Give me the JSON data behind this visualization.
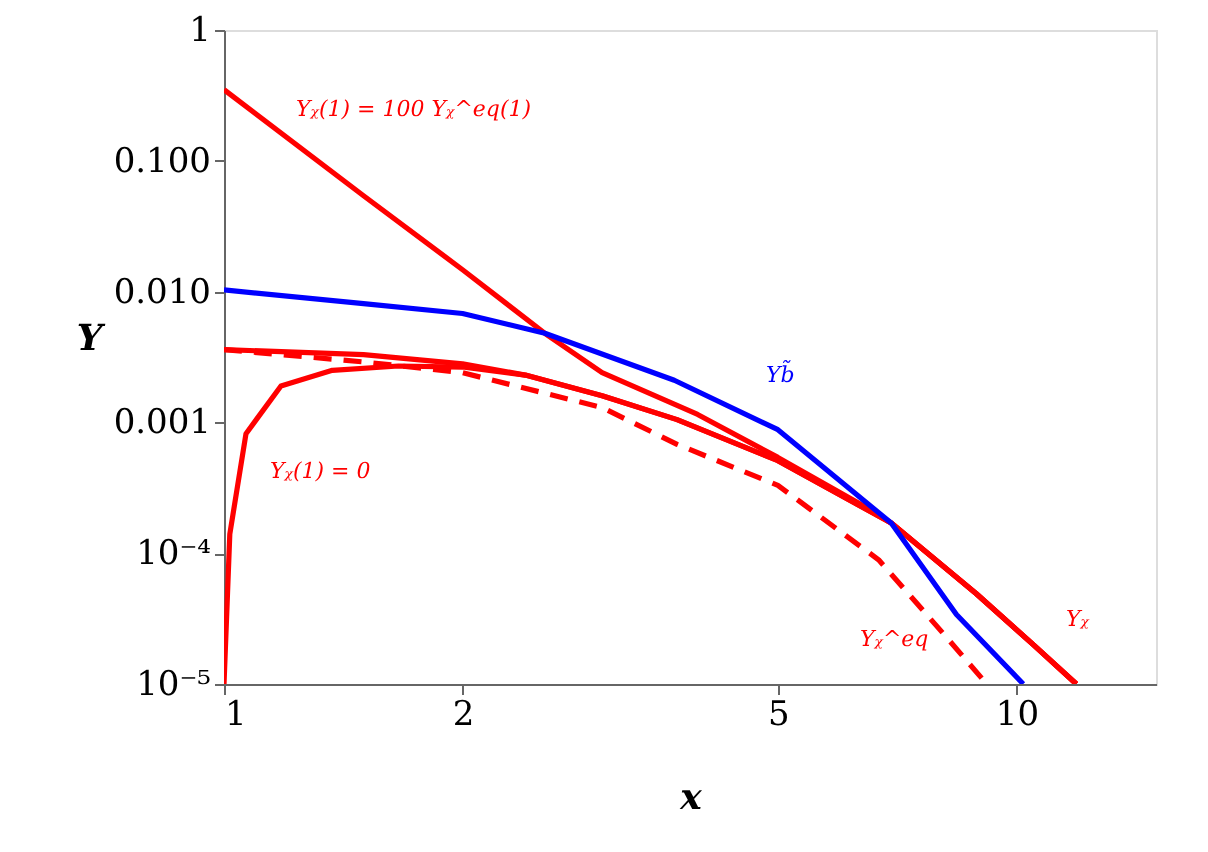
{
  "chart_data": {
    "type": "line",
    "xlabel": "x",
    "ylabel": "Y",
    "log": "xy",
    "grid": false,
    "marker": "none",
    "xlim": [
      1,
      15
    ],
    "xticks": [
      1,
      2,
      5,
      10
    ],
    "ylim": [
      1e-05,
      1
    ],
    "yticks": [
      1,
      {
        "value": 0.1,
        "label": "0.100"
      },
      {
        "value": 0.01,
        "label": "0.010"
      },
      0.001,
      {
        "value": 0.0001,
        "label": "10⁻⁴"
      },
      {
        "value": 1e-05,
        "label": "10⁻⁵"
      }
    ],
    "series": [
      {
        "color": "#ff0000",
        "line_style": "solid",
        "x": [
          1,
          1.5,
          2,
          2.54,
          3,
          3.96,
          5,
          6.5,
          6.95,
          8.9,
          10.5,
          11.9
        ],
        "values": [
          0.35,
          0.054,
          0.0147,
          0.0048,
          0.0024,
          0.00115,
          0.00054,
          0.00022,
          0.00017,
          4.9e-05,
          2e-05,
          1e-05
        ]
      },
      {
        "color": "#ff0000",
        "line_style": "solid",
        "x": [
          1,
          1.017,
          1.066,
          1.18,
          1.37,
          1.66,
          2.0,
          2.4,
          3,
          3.73,
          5,
          6.95,
          8.9,
          10.5,
          11.9
        ],
        "values": [
          1e-05,
          0.00014,
          0.00082,
          0.0019,
          0.0025,
          0.0027,
          0.00265,
          0.0023,
          0.0016,
          0.00105,
          0.00051,
          0.00017,
          4.9e-05,
          2e-05,
          1e-05
        ]
      },
      {
        "color": "#ff0000",
        "line_style": "solid",
        "x": [
          1,
          1.5,
          2,
          2.4,
          3,
          3.73,
          5,
          6.95,
          8.9,
          10.5,
          11.9
        ],
        "values": [
          0.0036,
          0.0033,
          0.0028,
          0.0023,
          0.0016,
          0.00105,
          0.00051,
          0.00017,
          4.9e-05,
          2e-05,
          1e-05
        ]
      },
      {
        "color": "#ff0000",
        "line_style": "dashed",
        "x": [
          1,
          1.5,
          2,
          3,
          3.73,
          5,
          6.7,
          8.1,
          9.05,
          9.2
        ],
        "values": [
          0.0036,
          0.0029,
          0.0024,
          0.0013,
          0.00068,
          0.00033,
          8.9e-05,
          2.4e-05,
          1.1e-05,
          1e-05
        ]
      },
      {
        "color": "#0000ff",
        "line_style": "solid",
        "x": [
          1,
          1.5,
          2,
          2.54,
          3.7,
          5,
          6.95,
          8.4,
          10.2
        ],
        "values": [
          0.0103,
          0.0081,
          0.0068,
          0.0048,
          0.0021,
          0.00088,
          0.00017,
          3.4e-05,
          1e-05
        ]
      }
    ],
    "annotations": [
      "Yᵪ(1) = 100 Yᵪ^eq(1)",
      "Yᵪ(1) = 0",
      "Yb̃",
      "Yᵪ^eq",
      "Yᵪ"
    ]
  }
}
